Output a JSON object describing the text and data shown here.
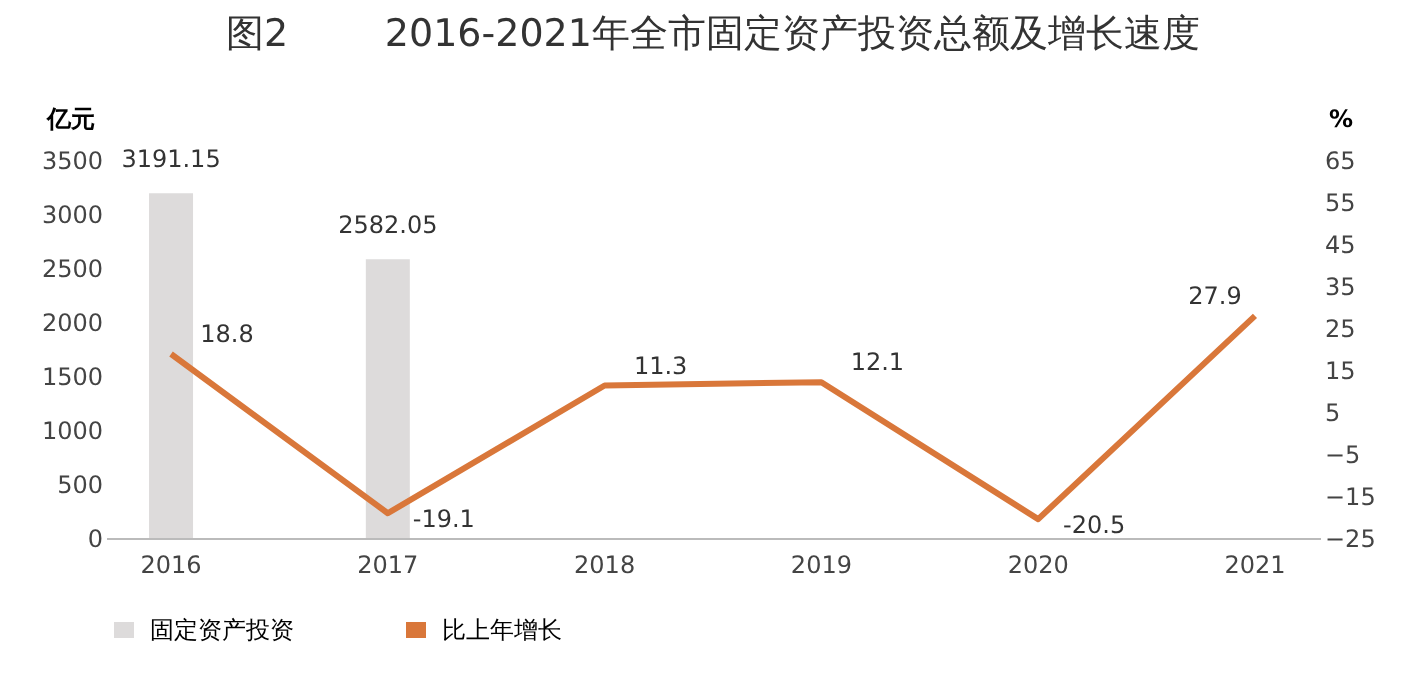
{
  "chart_data": {
    "type": "bar",
    "title": "图2        2016-2021年全市固定资产投资总额及增长速度",
    "ylabel": "亿元",
    "y2label": "%",
    "categories": [
      "2016",
      "2017",
      "2018",
      "2019",
      "2020",
      "2021"
    ],
    "series": [
      {
        "name": "固定资产投资",
        "color": "#dddbdb",
        "values": [
          3191.15,
          2582.05,
          null,
          null,
          null,
          null
        ]
      },
      {
        "name": "比上年增长",
        "type": "line",
        "axis": "y2",
        "color": "#d9773a",
        "values": [
          18.8,
          -19.1,
          11.3,
          12.1,
          -20.5,
          27.9
        ]
      }
    ],
    "ylim": [
      0,
      3500
    ],
    "yticks": [
      0,
      500,
      1000,
      1500,
      2000,
      2500,
      3000,
      3500
    ],
    "y2lim": [
      -25,
      65
    ],
    "y2ticks": [
      -25,
      -15,
      -5,
      5,
      15,
      25,
      35,
      45,
      55,
      65
    ],
    "data_labels": true,
    "grid": false,
    "legend": "bottom",
    "marker": "none",
    "line_style": "solid"
  }
}
